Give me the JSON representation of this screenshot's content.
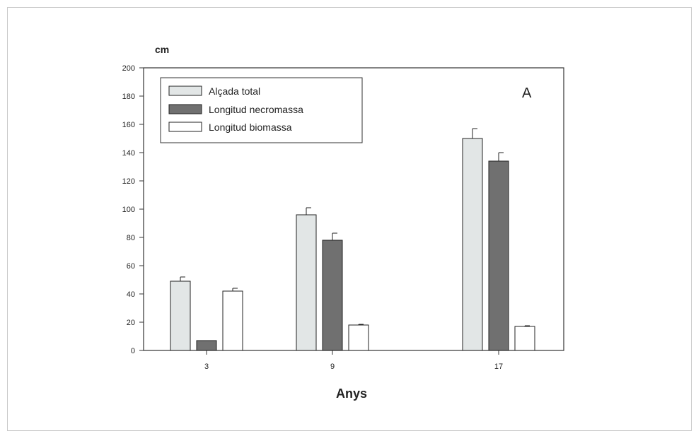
{
  "chart_data": {
    "type": "bar",
    "ylabel": "cm",
    "xlabel": "Anys",
    "panel_letter": "A",
    "categories": [
      "3",
      "9",
      "17"
    ],
    "ylim": [
      0,
      200
    ],
    "yticks": [
      0,
      20,
      40,
      60,
      80,
      100,
      120,
      140,
      160,
      180,
      200
    ],
    "ytick_labels": [
      "0",
      "20",
      "40",
      "60",
      "80",
      "100",
      "120",
      "140",
      "160",
      "180",
      "200"
    ],
    "legend_position": "top-left",
    "grid": false,
    "series": [
      {
        "name": "Alçada total",
        "color": "#e2e6e6",
        "values": [
          49,
          96,
          150
        ],
        "errors": [
          3,
          5,
          7
        ]
      },
      {
        "name": "Longitud necromassa",
        "color": "#707070",
        "values": [
          7,
          78,
          134
        ],
        "errors": [
          0,
          5,
          6
        ]
      },
      {
        "name": "Longitud biomassa",
        "color": "#ffffff",
        "values": [
          42,
          18,
          17
        ],
        "errors": [
          2,
          0.5,
          0.5
        ]
      }
    ]
  }
}
